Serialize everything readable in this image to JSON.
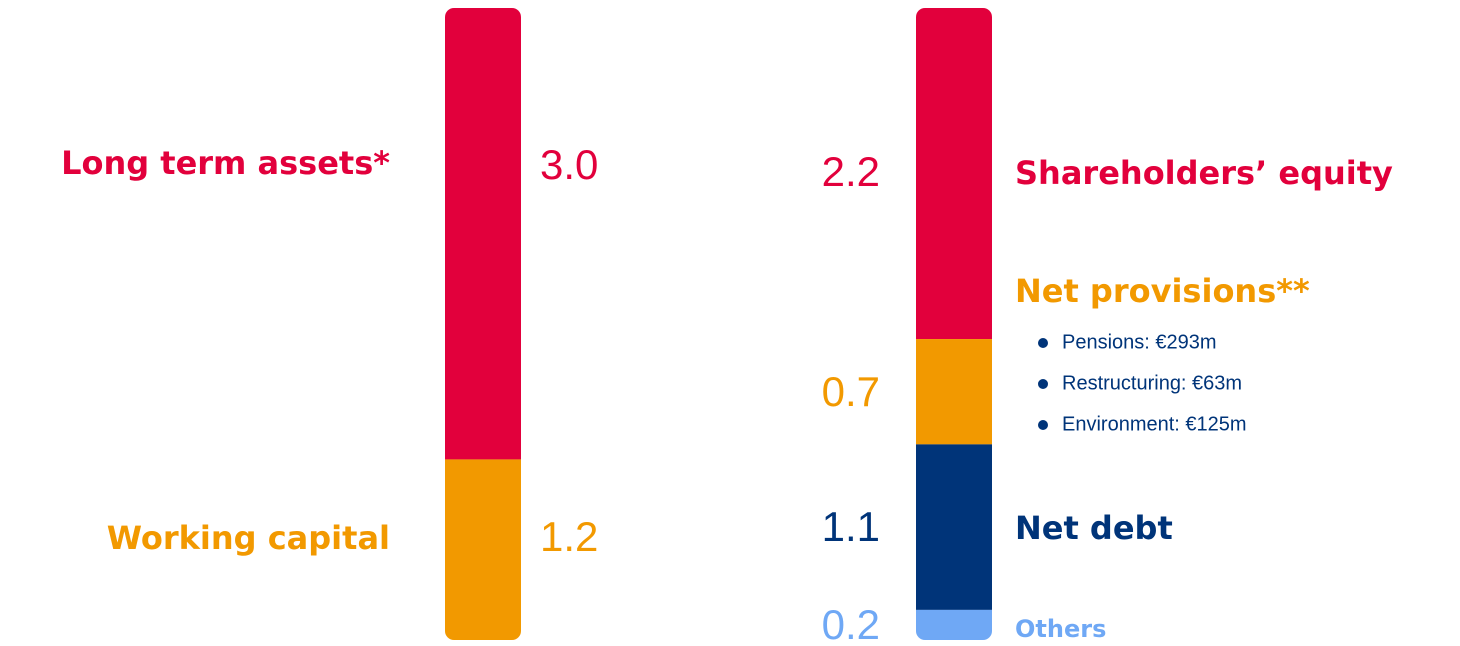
{
  "chart_data": [
    {
      "type": "stacked-column",
      "series": [
        {
          "name": "Long term assets*",
          "color": "#e2003c",
          "values": [
            3.0
          ],
          "value_labels": [
            "3.0"
          ]
        },
        {
          "name": "Working capital",
          "color": "#f29900",
          "values": [
            1.2
          ]
        }
      ]
    },
    {
      "type": "stacked-column",
      "series": [
        {
          "name": "Shareholders’ equity",
          "color": "#e2003c",
          "values": [
            2.2
          ]
        },
        {
          "name": "Net provisions**",
          "color": "#f29900",
          "values": [
            0.7
          ],
          "notes": [
            "Pensions: €293m",
            "Restructuring: €63m",
            "Environment: €125m"
          ]
        },
        {
          "name": "Net debt",
          "color": "#003479",
          "values": [
            1.1
          ]
        },
        {
          "name": "Others",
          "color": "#6fa8f5",
          "values": [
            0.2
          ]
        }
      ]
    }
  ]
}
